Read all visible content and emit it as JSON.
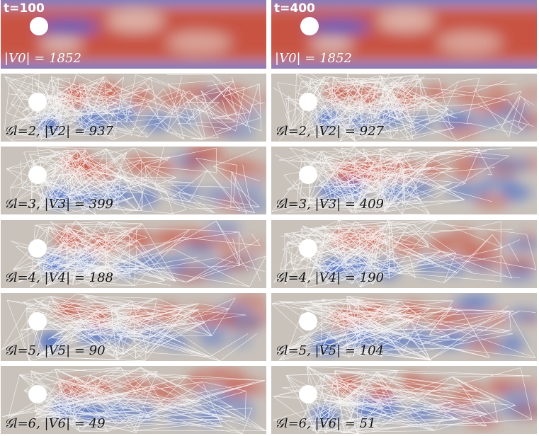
{
  "columns": [
    {
      "time_label": "t=100",
      "panels": [
        {
          "caption": "|V0| = 1852",
          "mesh_density": 0
        },
        {
          "caption": "𝒢l=2, |V2| = 937",
          "mesh_density": 1.0
        },
        {
          "caption": "𝒢l=3, |V3| = 399",
          "mesh_density": 0.55
        },
        {
          "caption": "𝒢l=4, |V4| = 188",
          "mesh_density": 0.35
        },
        {
          "caption": "𝒢l=5, |V5| = 90",
          "mesh_density": 0.22
        },
        {
          "caption": "𝒢l=6, |V6| = 49",
          "mesh_density": 0.15
        }
      ]
    },
    {
      "time_label": "t=400",
      "panels": [
        {
          "caption": "|V0| = 1852",
          "mesh_density": 0
        },
        {
          "caption": "𝒢l=2, |V2| = 927",
          "mesh_density": 1.0
        },
        {
          "caption": "𝒢l=3, |V3| = 409",
          "mesh_density": 0.55
        },
        {
          "caption": "𝒢l=4, |V4| = 190",
          "mesh_density": 0.35
        },
        {
          "caption": "𝒢l=5, |V5| = 104",
          "mesh_density": 0.22
        },
        {
          "caption": "𝒢l=6, |V6| = 51",
          "mesh_density": 0.15
        }
      ]
    }
  ],
  "colors": {
    "positive": "#c8402f",
    "negative": "#3b64c8",
    "neutral": "#c9c2bb",
    "mesh": "#ffffff"
  }
}
